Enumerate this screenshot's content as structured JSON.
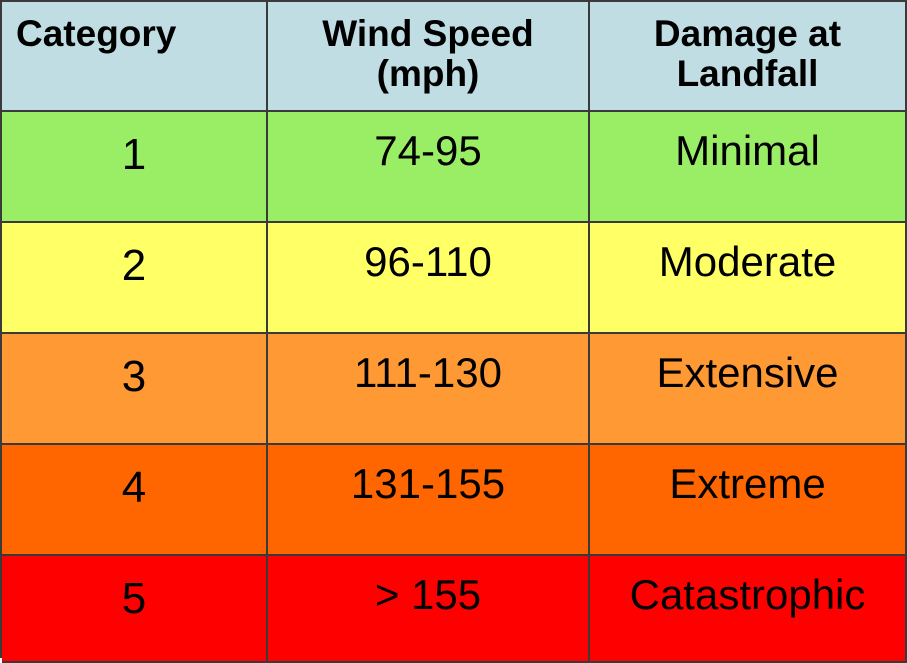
{
  "chart_data": {
    "type": "table",
    "columns": [
      {
        "lines": [
          "Category"
        ]
      },
      {
        "lines": [
          "Wind Speed",
          "(mph)"
        ]
      },
      {
        "lines": [
          "Damage at",
          "Landfall"
        ]
      }
    ],
    "rows": [
      {
        "category": "1",
        "wind_speed": "74-95",
        "damage": "Minimal",
        "color": "#99ee66"
      },
      {
        "category": "2",
        "wind_speed": "96-110",
        "damage": "Moderate",
        "color": "#ffff66"
      },
      {
        "category": "3",
        "wind_speed": "111-130",
        "damage": "Extensive",
        "color": "#ff9933"
      },
      {
        "category": "4",
        "wind_speed": "131-155",
        "damage": "Extreme",
        "color": "#ff6600"
      },
      {
        "category": "5",
        "wind_speed": "> 155",
        "damage": "Catastrophic",
        "color": "#ff0000"
      }
    ]
  },
  "colors": {
    "header_bg": "#bfdde3",
    "border": "#3a3a3a"
  }
}
